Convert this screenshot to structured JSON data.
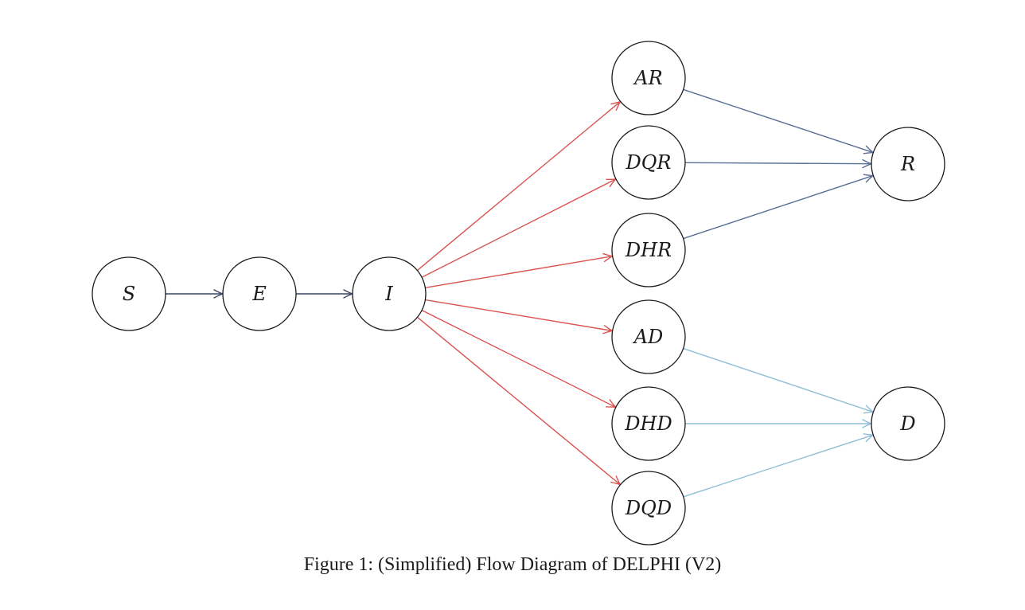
{
  "caption": "Figure 1: (Simplified) Flow Diagram of DELPHI (V2)",
  "colors": {
    "node_stroke": "#1a1a1a",
    "infection_edges": "#d9534f",
    "recovery_edges": "#5a6f95",
    "death_edges": "#8fbdd6",
    "progression_edges": "#3a4560"
  },
  "nodes": [
    {
      "id": "S",
      "label": "S"
    },
    {
      "id": "E",
      "label": "E"
    },
    {
      "id": "I",
      "label": "I"
    },
    {
      "id": "AR",
      "label": "AR"
    },
    {
      "id": "DQR",
      "label": "DQR"
    },
    {
      "id": "DHR",
      "label": "DHR"
    },
    {
      "id": "AD",
      "label": "AD"
    },
    {
      "id": "DHD",
      "label": "DHD"
    },
    {
      "id": "DQD",
      "label": "DQD"
    },
    {
      "id": "R",
      "label": "R"
    },
    {
      "id": "D",
      "label": "D"
    }
  ],
  "edges": [
    {
      "from": "S",
      "to": "E",
      "group": "progression"
    },
    {
      "from": "E",
      "to": "I",
      "group": "progression"
    },
    {
      "from": "I",
      "to": "AR",
      "group": "infection"
    },
    {
      "from": "I",
      "to": "DQR",
      "group": "infection"
    },
    {
      "from": "I",
      "to": "DHR",
      "group": "infection"
    },
    {
      "from": "I",
      "to": "AD",
      "group": "infection"
    },
    {
      "from": "I",
      "to": "DHD",
      "group": "infection"
    },
    {
      "from": "I",
      "to": "DQD",
      "group": "infection"
    },
    {
      "from": "AR",
      "to": "R",
      "group": "recovery"
    },
    {
      "from": "DQR",
      "to": "R",
      "group": "recovery"
    },
    {
      "from": "DHR",
      "to": "R",
      "group": "recovery"
    },
    {
      "from": "AD",
      "to": "D",
      "group": "death"
    },
    {
      "from": "DHD",
      "to": "D",
      "group": "death"
    },
    {
      "from": "DQD",
      "to": "D",
      "group": "death"
    }
  ]
}
